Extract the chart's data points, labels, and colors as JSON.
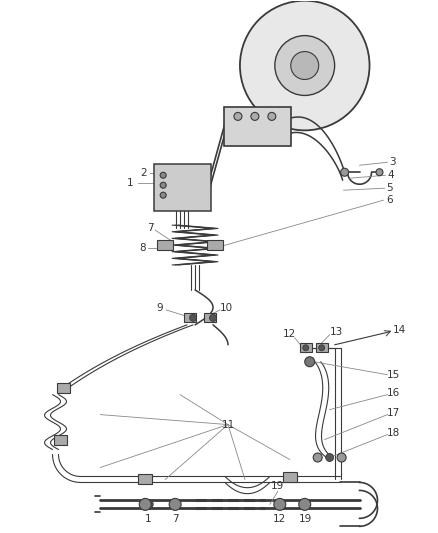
{
  "background_color": "#ffffff",
  "line_color": "#3a3a3a",
  "label_color": "#333333",
  "figsize": [
    4.38,
    5.33
  ],
  "dpi": 100,
  "lw_main": 1.5,
  "lw_thin": 0.9,
  "lw_label": 0.6,
  "label_fontsize": 7.5
}
